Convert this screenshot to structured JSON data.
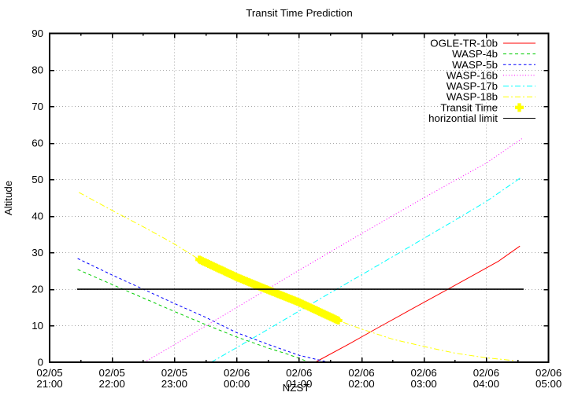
{
  "chart_data": {
    "type": "line",
    "title": "Transit Time Prediction",
    "xlabel": "NZST",
    "ylabel": "Altitude",
    "ylim": [
      0,
      90
    ],
    "x_hours_range": [
      0,
      8
    ],
    "grid": true,
    "legend_position": "top-right-inside",
    "y_ticks": [
      0,
      10,
      20,
      30,
      40,
      50,
      60,
      70,
      80,
      90
    ],
    "x_ticks": [
      {
        "date": "02/05",
        "time": "21:00",
        "t": 0
      },
      {
        "date": "02/05",
        "time": "22:00",
        "t": 1
      },
      {
        "date": "02/05",
        "time": "23:00",
        "t": 2
      },
      {
        "date": "02/06",
        "time": "00:00",
        "t": 3
      },
      {
        "date": "02/06",
        "time": "01:00",
        "t": 4
      },
      {
        "date": "02/06",
        "time": "02:00",
        "t": 5
      },
      {
        "date": "02/06",
        "time": "03:00",
        "t": 6
      },
      {
        "date": "02/06",
        "time": "04:00",
        "t": 7
      },
      {
        "date": "02/06",
        "time": "05:00",
        "t": 8
      }
    ],
    "series": [
      {
        "name": "OGLE-TR-10b",
        "color": "#ff0000",
        "dash": "",
        "points": [
          [
            4.26,
            0
          ],
          [
            4.8,
            5.0
          ],
          [
            5.3,
            9.8
          ],
          [
            5.8,
            14.5
          ],
          [
            6.3,
            19.2
          ],
          [
            6.8,
            23.9
          ],
          [
            7.2,
            27.7
          ],
          [
            7.54,
            31.8
          ]
        ]
      },
      {
        "name": "WASP-4b",
        "color": "#00cc00",
        "dash": "4,3.5",
        "points": [
          [
            0.45,
            25.4
          ],
          [
            1.0,
            21.3
          ],
          [
            1.5,
            17.6
          ],
          [
            2.0,
            13.9
          ],
          [
            2.5,
            10.3
          ],
          [
            3.0,
            6.9
          ],
          [
            3.5,
            3.9
          ],
          [
            3.8,
            2.3
          ],
          [
            4.12,
            0.3
          ]
        ]
      },
      {
        "name": "WASP-5b",
        "color": "#0000ff",
        "dash": "3.5,3",
        "points": [
          [
            0.45,
            28.4
          ],
          [
            1.0,
            23.9
          ],
          [
            1.5,
            20.0
          ],
          [
            2.0,
            16.1
          ],
          [
            2.5,
            12.3
          ],
          [
            3.0,
            8.1
          ],
          [
            3.5,
            4.9
          ],
          [
            4.0,
            1.9
          ],
          [
            4.42,
            0.2
          ]
        ]
      },
      {
        "name": "WASP-16b",
        "color": "#ff00ff",
        "dash": "1,2.5",
        "points": [
          [
            1.52,
            0
          ],
          [
            2.0,
            4.8
          ],
          [
            2.5,
            9.9
          ],
          [
            3.0,
            15.0
          ],
          [
            3.5,
            20.1
          ],
          [
            4.0,
            25.2
          ],
          [
            4.5,
            30.2
          ],
          [
            5.0,
            35.2
          ],
          [
            5.5,
            40.1
          ],
          [
            6.0,
            45.0
          ],
          [
            6.5,
            49.8
          ],
          [
            7.0,
            54.5
          ],
          [
            7.58,
            61.3
          ]
        ]
      },
      {
        "name": "WASP-17b",
        "color": "#00ffff",
        "dash": "7,3,2,3",
        "points": [
          [
            2.59,
            0
          ],
          [
            3.0,
            4.0
          ],
          [
            3.5,
            9.0
          ],
          [
            4.0,
            14.0
          ],
          [
            4.5,
            19.0
          ],
          [
            5.0,
            23.9
          ],
          [
            5.5,
            28.9
          ],
          [
            6.0,
            33.9
          ],
          [
            6.5,
            38.9
          ],
          [
            7.0,
            44.0
          ],
          [
            7.56,
            50.6
          ]
        ]
      },
      {
        "name": "WASP-18b",
        "color": "#ffff00",
        "dash": "7,3,2,3",
        "points": [
          [
            0.47,
            46.5
          ],
          [
            1.0,
            41.6
          ],
          [
            1.5,
            37.1
          ],
          [
            2.0,
            32.4
          ],
          [
            2.4,
            28.1
          ],
          [
            3.0,
            23.3
          ],
          [
            3.47,
            20.0
          ],
          [
            4.0,
            16.4
          ],
          [
            4.63,
            11.4
          ],
          [
            5.0,
            9.1
          ],
          [
            5.5,
            6.3
          ],
          [
            6.0,
            4.3
          ],
          [
            6.5,
            2.5
          ],
          [
            7.0,
            1.2
          ],
          [
            7.47,
            0.4
          ]
        ]
      }
    ],
    "transit_time": {
      "name": "Transit Time",
      "color": "#ffff00",
      "points": [
        [
          2.4,
          28.1
        ],
        [
          3.0,
          23.3
        ],
        [
          3.47,
          20.0
        ],
        [
          4.0,
          16.4
        ],
        [
          4.63,
          11.4
        ]
      ]
    },
    "horizontal_limit": {
      "name": "horizontial limit",
      "color": "#000000",
      "altitude": 20,
      "t_range": [
        0.44,
        7.6
      ]
    }
  }
}
